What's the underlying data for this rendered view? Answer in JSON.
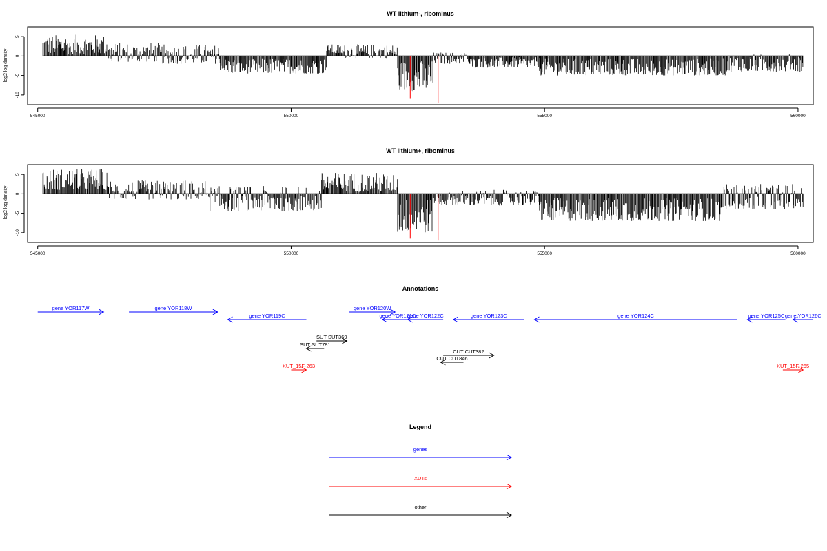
{
  "colors": {
    "gene": "#0000ff",
    "xut": "#ff0000",
    "other": "#000000",
    "highlight": "#ff0000"
  },
  "chart_data": [
    {
      "type": "bar",
      "title": "WT lithium-, ribominus",
      "ylabel": "log2 log density",
      "xlim": [
        544800,
        560300
      ],
      "ylim": [
        -12.5,
        7.5
      ],
      "xticks": [
        545000,
        550000,
        555000,
        560000
      ],
      "xtick_labels": [
        "545000",
        "550000",
        "555000",
        "560000"
      ],
      "yticks": [
        5,
        0,
        -5,
        -10
      ],
      "ytick_labels": [
        "5",
        "0",
        "-5",
        "-10"
      ],
      "grid": false,
      "regions": [
        {
          "start": 545100,
          "end": 546400,
          "min": 0.5,
          "max": 5.5
        },
        {
          "start": 546400,
          "end": 547400,
          "min": -1.5,
          "max": 3.5
        },
        {
          "start": 547400,
          "end": 548600,
          "min": -2,
          "max": 3
        },
        {
          "start": 548600,
          "end": 550700,
          "min": -4.5,
          "max": -0.5
        },
        {
          "start": 550700,
          "end": 551000,
          "min": 0.5,
          "max": 3
        },
        {
          "start": 551000,
          "end": 552100,
          "min": -0.5,
          "max": 3
        },
        {
          "start": 552100,
          "end": 552800,
          "min": -9,
          "max": -1
        },
        {
          "start": 552800,
          "end": 553500,
          "min": -2,
          "max": 1
        },
        {
          "start": 553500,
          "end": 554900,
          "min": -3,
          "max": -0.3
        },
        {
          "start": 554900,
          "end": 558600,
          "min": -5,
          "max": -0.5
        },
        {
          "start": 558600,
          "end": 560100,
          "min": -4,
          "max": 0.5
        }
      ],
      "highlight_bars": [
        {
          "x": 552350,
          "y": -11
        },
        {
          "x": 552900,
          "y": -12
        }
      ]
    },
    {
      "type": "bar",
      "title": "WT lithium+, ribominus",
      "ylabel": "log2 log density",
      "xlim": [
        544800,
        560300
      ],
      "ylim": [
        -12.5,
        7.5
      ],
      "xticks": [
        545000,
        550000,
        555000,
        560000
      ],
      "xtick_labels": [
        "545000",
        "550000",
        "555000",
        "560000"
      ],
      "yticks": [
        5,
        0,
        -5,
        -10
      ],
      "ytick_labels": [
        "5",
        "0",
        "-5",
        "-10"
      ],
      "grid": false,
      "regions": [
        {
          "start": 545100,
          "end": 546400,
          "min": 1,
          "max": 6.5
        },
        {
          "start": 546400,
          "end": 548400,
          "min": -1.5,
          "max": 3.5
        },
        {
          "start": 548400,
          "end": 550600,
          "min": -4.5,
          "max": 2
        },
        {
          "start": 550600,
          "end": 552100,
          "min": 0.5,
          "max": 5.5
        },
        {
          "start": 552100,
          "end": 552800,
          "min": -10,
          "max": -1
        },
        {
          "start": 552800,
          "end": 553300,
          "min": -3,
          "max": 0.5
        },
        {
          "start": 553300,
          "end": 554900,
          "min": -3,
          "max": 1
        },
        {
          "start": 554900,
          "end": 558500,
          "min": -7,
          "max": -1
        },
        {
          "start": 558500,
          "end": 560100,
          "min": -4,
          "max": 2.5
        }
      ],
      "highlight_bars": [
        {
          "x": 552350,
          "y": -11.5
        },
        {
          "x": 552900,
          "y": -12
        }
      ]
    }
  ],
  "annotations": {
    "title": "Annotations",
    "features": [
      {
        "label": "gene YOR117W",
        "start": 545000,
        "end": 546300,
        "strand": "+",
        "kind": "gene",
        "row": 0
      },
      {
        "label": "gene YOR118W",
        "start": 546800,
        "end": 548550,
        "strand": "+",
        "kind": "gene",
        "row": 0
      },
      {
        "label": "gene YOR119C",
        "start": 548750,
        "end": 550300,
        "strand": "-",
        "kind": "gene",
        "row": 1
      },
      {
        "label": "gene YOR120W",
        "start": 551150,
        "end": 552050,
        "strand": "+",
        "kind": "gene",
        "row": 0
      },
      {
        "label": "gene YOR121C",
        "start": 551800,
        "end": 552400,
        "strand": "-",
        "kind": "gene",
        "row": 1
      },
      {
        "label": "gene YOR122C",
        "start": 552300,
        "end": 553000,
        "strand": "-",
        "kind": "gene",
        "row": 1
      },
      {
        "label": "gene YOR123C",
        "start": 553200,
        "end": 554600,
        "strand": "-",
        "kind": "gene",
        "row": 1
      },
      {
        "label": "gene YOR124C",
        "start": 554800,
        "end": 558800,
        "strand": "-",
        "kind": "gene",
        "row": 1
      },
      {
        "label": "gene YOR125C",
        "start": 559000,
        "end": 559750,
        "strand": "-",
        "kind": "gene",
        "row": 1
      },
      {
        "label": "gene YOR126C",
        "start": 559900,
        "end": 560300,
        "strand": "-",
        "kind": "gene",
        "row": 1
      },
      {
        "label": "SUT SUT369",
        "start": 550500,
        "end": 551100,
        "strand": "+",
        "kind": "other",
        "row": 2
      },
      {
        "label": "SUT SUT781",
        "start": 550300,
        "end": 550650,
        "strand": "-",
        "kind": "other",
        "row": 3
      },
      {
        "label": "CUT CUT382",
        "start": 553000,
        "end": 554000,
        "strand": "+",
        "kind": "other",
        "row": 4
      },
      {
        "label": "CUT CUT846",
        "start": 552950,
        "end": 553400,
        "strand": "-",
        "kind": "other",
        "row": 5
      },
      {
        "label": "XUT_15F-263",
        "start": 550000,
        "end": 550300,
        "strand": "+",
        "kind": "xut",
        "row": 6
      },
      {
        "label": "XUT_15F-265",
        "start": 559700,
        "end": 560100,
        "strand": "+",
        "kind": "xut",
        "row": 6
      }
    ]
  },
  "legend": {
    "title": "Legend",
    "items": [
      {
        "label": "genes",
        "kind": "gene"
      },
      {
        "label": "XUTs",
        "kind": "xut"
      },
      {
        "label": "other",
        "kind": "other"
      }
    ]
  }
}
